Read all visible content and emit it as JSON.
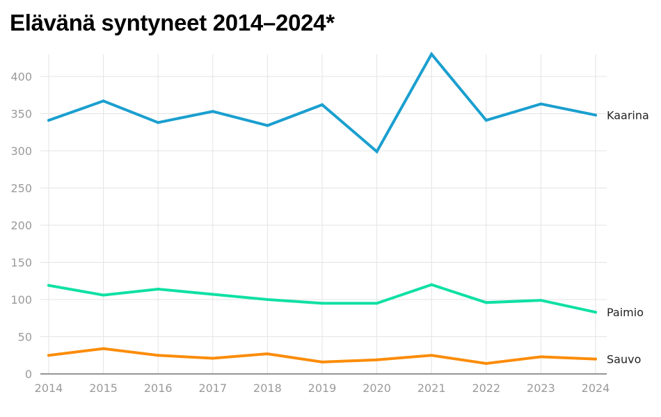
{
  "chart_data": {
    "type": "line",
    "title": "Elävänä syntyneet 2014–2024*",
    "xlabel": "",
    "ylabel": "",
    "x": [
      "2014",
      "2015",
      "2016",
      "2017",
      "2018",
      "2019",
      "2020",
      "2021",
      "2022",
      "2023",
      "2024"
    ],
    "ylim": [
      0,
      420
    ],
    "yticks": [
      0,
      50,
      100,
      150,
      200,
      250,
      300,
      350,
      400
    ],
    "grid": true,
    "legend": "end-of-line labels",
    "series": [
      {
        "name": "Kaarina",
        "color": "#1a9fcf",
        "values": [
          341,
          367,
          338,
          353,
          334,
          362,
          299,
          430,
          341,
          363,
          348
        ]
      },
      {
        "name": "Paimio",
        "color": "#0fe0a4",
        "values": [
          119,
          106,
          114,
          107,
          100,
          95,
          95,
          120,
          96,
          99,
          83
        ]
      },
      {
        "name": "Sauvo",
        "color": "#fb8c0a",
        "values": [
          25,
          34,
          25,
          21,
          27,
          16,
          19,
          25,
          14,
          23,
          20
        ]
      }
    ]
  }
}
